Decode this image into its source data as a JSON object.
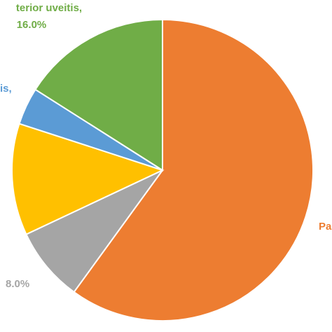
{
  "chart_data": {
    "type": "pie",
    "slices": [
      {
        "label": "Pa",
        "display": "",
        "value": 60.0,
        "color": "#ED7D31"
      },
      {
        "label": "",
        "display": "8.0%",
        "value": 8.0,
        "color": "#A5A5A5"
      },
      {
        "label": "",
        "display": "",
        "value": 12.0,
        "color": "#FFC000"
      },
      {
        "label": "is,",
        "display": "",
        "value": 4.0,
        "color": "#5B9BD5"
      },
      {
        "label": "terior uveitis,",
        "display": "16.0%",
        "value": 16.0,
        "color": "#70AD47"
      }
    ]
  }
}
